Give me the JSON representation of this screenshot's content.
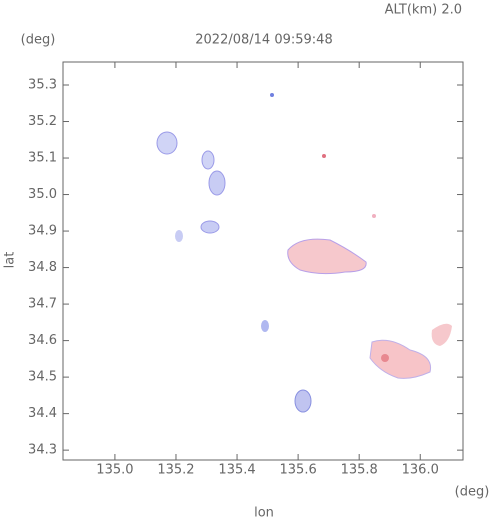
{
  "chart_data": {
    "type": "radar-map",
    "title": "2022/08/14 09:59:48",
    "subtitle": "ALT(km) 2.0",
    "x_unit": "(deg)",
    "y_unit": "(deg)",
    "xlabel": "lon",
    "ylabel": "lat",
    "xlim": [
      134.83,
      136.14
    ],
    "ylim": [
      34.273,
      35.363
    ],
    "xticks": [
      {
        "value": 135,
        "label": "135.0"
      },
      135.2,
      135.4,
      135.6,
      135.8,
      {
        "value": 136,
        "label": "136.0"
      }
    ],
    "yticks": [
      34.3,
      34.4,
      34.5,
      34.6,
      34.7,
      34.8,
      34.9,
      {
        "value": 35,
        "label": "35.0"
      },
      35.1,
      35.2,
      35.3
    ]
  }
}
